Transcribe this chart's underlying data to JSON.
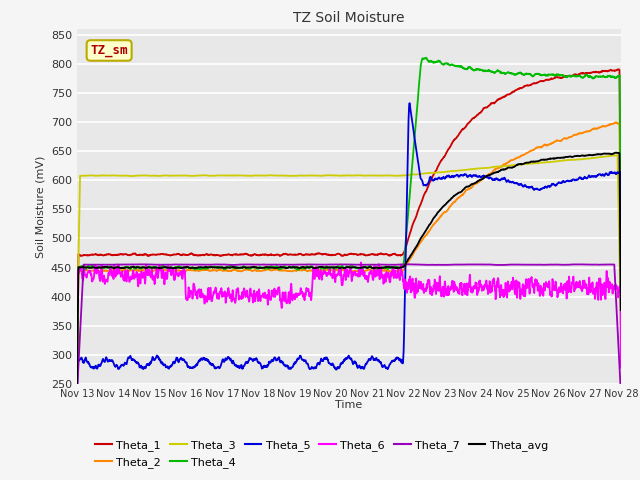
{
  "title": "TZ Soil Moisture",
  "xlabel": "Time",
  "ylabel": "Soil Moisture (mV)",
  "ylim": [
    250,
    860
  ],
  "xlim": [
    0,
    15
  ],
  "xtick_labels": [
    "Nov 13",
    "Nov 14",
    "Nov 15",
    "Nov 16",
    "Nov 17",
    "Nov 18",
    "Nov 19",
    "Nov 20",
    "Nov 21",
    "Nov 22",
    "Nov 23",
    "Nov 24",
    "Nov 25",
    "Nov 26",
    "Nov 27",
    "Nov 28"
  ],
  "series_colors": {
    "Theta_1": "#cc0000",
    "Theta_2": "#ff8800",
    "Theta_3": "#cccc00",
    "Theta_4": "#00bb00",
    "Theta_5": "#0000dd",
    "Theta_6": "#ff00ff",
    "Theta_7": "#9900bb",
    "Theta_avg": "#000000"
  },
  "legend_label": "TZ_sm",
  "legend_box_facecolor": "#ffffcc",
  "legend_box_edgecolor": "#bbaa00",
  "fig_facecolor": "#f5f5f5",
  "plot_facecolor": "#e8e8e8",
  "grid_color": "#ffffff",
  "title_color": "#333333",
  "tick_color": "#333333"
}
